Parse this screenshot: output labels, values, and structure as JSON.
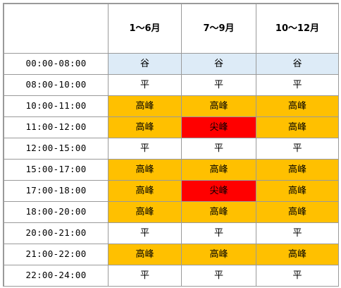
{
  "header": [
    "",
    "1～6月",
    "7～9月",
    "10～12月"
  ],
  "levels": {
    "valley": "谷",
    "flat": "平",
    "peak": "高峰",
    "sharp": "尖峰"
  },
  "colors": {
    "valley": "#ddebf7",
    "flat": "#ffffff",
    "peak": "#ffc000",
    "sharp": "#ff0000",
    "grid": "#9a9a9a"
  },
  "rows": [
    {
      "time": "00:00-08:00",
      "cells": [
        "谷",
        "谷",
        "谷"
      ],
      "types": [
        "valley",
        "valley",
        "valley"
      ]
    },
    {
      "time": "08:00-10:00",
      "cells": [
        "平",
        "平",
        "平"
      ],
      "types": [
        "flat",
        "flat",
        "flat"
      ]
    },
    {
      "time": "10:00-11:00",
      "cells": [
        "高峰",
        "高峰",
        "高峰"
      ],
      "types": [
        "peak",
        "peak",
        "peak"
      ]
    },
    {
      "time": "11:00-12:00",
      "cells": [
        "高峰",
        "尖峰",
        "高峰"
      ],
      "types": [
        "peak",
        "sharp",
        "peak"
      ]
    },
    {
      "time": "12:00-15:00",
      "cells": [
        "平",
        "平",
        "平"
      ],
      "types": [
        "flat",
        "flat",
        "flat"
      ]
    },
    {
      "time": "15:00-17:00",
      "cells": [
        "高峰",
        "高峰",
        "高峰"
      ],
      "types": [
        "peak",
        "peak",
        "peak"
      ]
    },
    {
      "time": "17:00-18:00",
      "cells": [
        "高峰",
        "尖峰",
        "高峰"
      ],
      "types": [
        "peak",
        "sharp",
        "peak"
      ]
    },
    {
      "time": "18:00-20:00",
      "cells": [
        "高峰",
        "高峰",
        "高峰"
      ],
      "types": [
        "peak",
        "peak",
        "peak"
      ]
    },
    {
      "time": "20:00-21:00",
      "cells": [
        "平",
        "平",
        "平"
      ],
      "types": [
        "flat",
        "flat",
        "flat"
      ]
    },
    {
      "time": "21:00-22:00",
      "cells": [
        "高峰",
        "高峰",
        "高峰"
      ],
      "types": [
        "peak",
        "peak",
        "peak"
      ]
    },
    {
      "time": "22:00-24:00",
      "cells": [
        "平",
        "平",
        "平"
      ],
      "types": [
        "flat",
        "flat",
        "flat"
      ]
    }
  ]
}
